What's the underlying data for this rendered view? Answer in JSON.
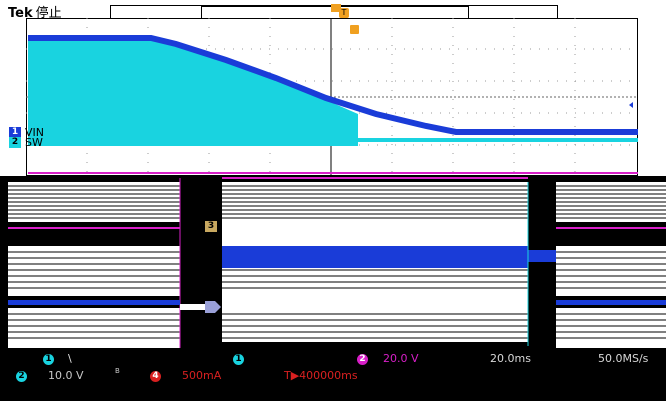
{
  "header": {
    "brand": "Tek",
    "run_state": "停止",
    "trigger_marker": "T"
  },
  "channels": {
    "ch1": {
      "number": "1",
      "label": "VIN",
      "color": "#1a3cd8"
    },
    "ch2": {
      "number": "2",
      "label": "SW",
      "color": "#19d3e0"
    }
  },
  "colors": {
    "ch1": "#1a3cd8",
    "ch2": "#19d3e0",
    "trigger": "#f0a020",
    "magenta": "#d81fc8",
    "ch3": "#c8a860"
  },
  "lower_panel": {
    "ch3_marker": "3"
  },
  "status_bar": {
    "ch1_badge": "1",
    "ch1_edge": "\\",
    "ch2_badge": "2",
    "ch2_scale": "10.0 V",
    "ch2_bw": "B",
    "ch4_badge": "4",
    "ch4_scale": "500mA",
    "cursor_badge": "1",
    "math_badge": "2",
    "math_scale": "20.0 V",
    "time_div": "20.0ms",
    "sample_rate": "50.0MS/s",
    "trigger_time": "T▶400000ms"
  }
}
